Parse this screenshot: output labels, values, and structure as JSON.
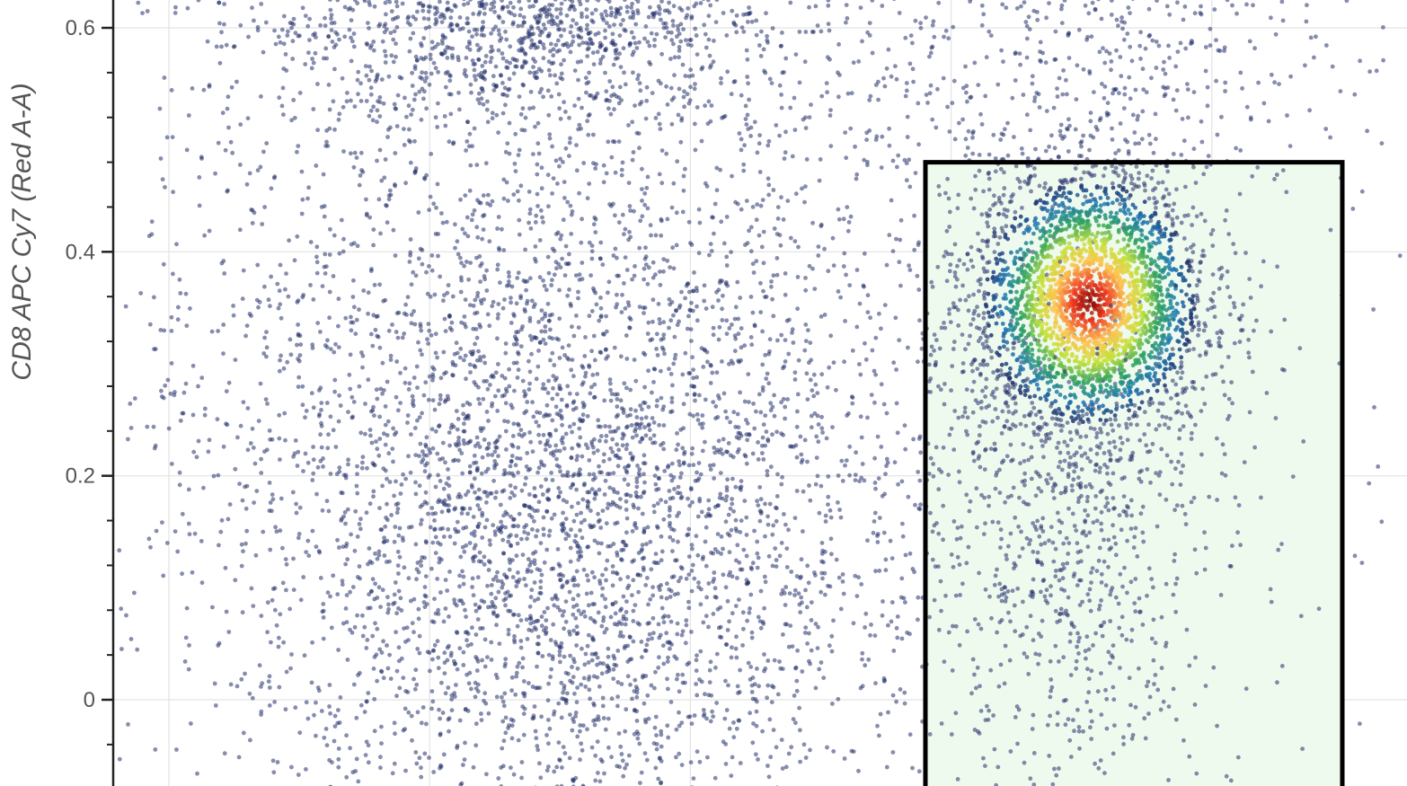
{
  "chart_data": {
    "type": "scatter",
    "title": "",
    "xlabel": "",
    "ylabel": "CD8 APC Cy7 (Red A-A)",
    "ylim": [
      -0.08,
      0.625
    ],
    "yticks": [
      0,
      0.2,
      0.4,
      0.6
    ],
    "ytick_labels": [
      "0",
      "0.2",
      "0.4",
      "0.6"
    ],
    "y_minor_step": 0.04,
    "x_tick_labels_visible": false,
    "xlim": [
      0,
      1
    ],
    "xgrid": [
      0.05,
      0.25,
      0.45,
      0.65,
      0.85,
      1.05
    ],
    "grid": true,
    "legend": "none",
    "point_color": "#22306a",
    "density_colormap": [
      "#22306a",
      "#1f78b4",
      "#2ca25f",
      "#c7e13a",
      "#fec44f",
      "#f03b20",
      "#7f0000"
    ],
    "gate": {
      "shape": "rectangle",
      "x_range": [
        0.58,
        0.9
      ],
      "y_range": [
        -0.1,
        0.48
      ],
      "fill": "#effaef",
      "stroke": "#000000"
    },
    "series": [
      {
        "clusters": [
          {
            "center": [
              0.32,
              0.61
            ],
            "spread": [
              0.11,
              0.05
            ],
            "count": 1500
          },
          {
            "center": [
              0.34,
              0.16
            ],
            "spread": [
              0.12,
              0.16
            ],
            "count": 3400
          },
          {
            "center": [
              0.28,
              0.38
            ],
            "spread": [
              0.18,
              0.2
            ],
            "count": 900
          },
          {
            "center": [
              0.77,
              0.58
            ],
            "spread": [
              0.1,
              0.07
            ],
            "count": 450
          },
          {
            "center": [
              0.62,
              0.28
            ],
            "spread": [
              0.13,
              0.25
            ],
            "count": 650
          },
          {
            "center": [
              0.74,
              0.15
            ],
            "spread": [
              0.05,
              0.12
            ],
            "count": 700
          },
          {
            "center": [
              0.755,
              0.355
            ],
            "spread": [
              0.045,
              0.06
            ],
            "count": 2800
          },
          {
            "center": [
              0.5,
              0.3
            ],
            "spread": [
              0.35,
              0.3
            ],
            "count": 500
          }
        ]
      }
    ]
  }
}
